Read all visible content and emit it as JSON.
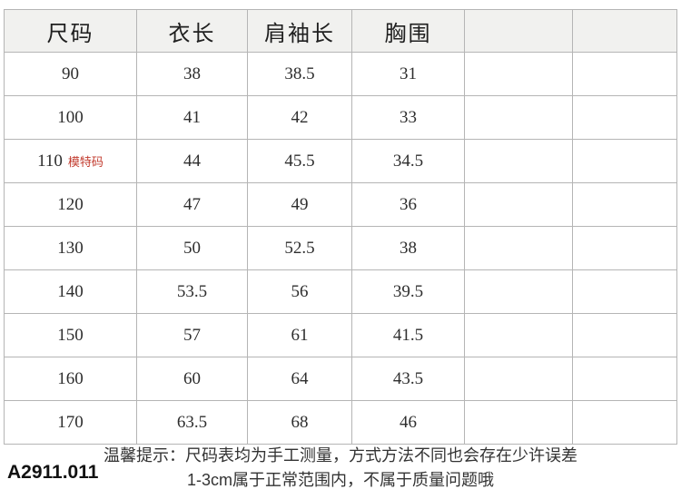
{
  "table": {
    "headers": [
      "尺码",
      "衣长",
      "肩袖长",
      "胸围",
      "",
      ""
    ],
    "rows": [
      {
        "size": "90",
        "length": "38",
        "shoulder_sleeve": "38.5",
        "chest": "31",
        "note": ""
      },
      {
        "size": "100",
        "length": "41",
        "shoulder_sleeve": "42",
        "chest": "33",
        "note": ""
      },
      {
        "size": "110",
        "length": "44",
        "shoulder_sleeve": "45.5",
        "chest": "34.5",
        "note": "模特码"
      },
      {
        "size": "120",
        "length": "47",
        "shoulder_sleeve": "49",
        "chest": "36",
        "note": ""
      },
      {
        "size": "130",
        "length": "50",
        "shoulder_sleeve": "52.5",
        "chest": "38",
        "note": ""
      },
      {
        "size": "140",
        "length": "53.5",
        "shoulder_sleeve": "56",
        "chest": "39.5",
        "note": ""
      },
      {
        "size": "150",
        "length": "57",
        "shoulder_sleeve": "61",
        "chest": "41.5",
        "note": ""
      },
      {
        "size": "160",
        "length": "60",
        "shoulder_sleeve": "64",
        "chest": "43.5",
        "note": ""
      },
      {
        "size": "170",
        "length": "63.5",
        "shoulder_sleeve": "68",
        "chest": "46",
        "note": ""
      }
    ]
  },
  "footer": {
    "tip_line1": "温馨提示：尺码表均为手工测量，方式方法不同也会存在少许误差",
    "tip_line2": "1-3cm属于正常范围内，不属于质量问题哦",
    "product_code": "A2911.011"
  },
  "colors": {
    "note_red": "#c23b2e",
    "header_bg": "#f1f1ef",
    "border_gray": "#b5b5b5"
  }
}
